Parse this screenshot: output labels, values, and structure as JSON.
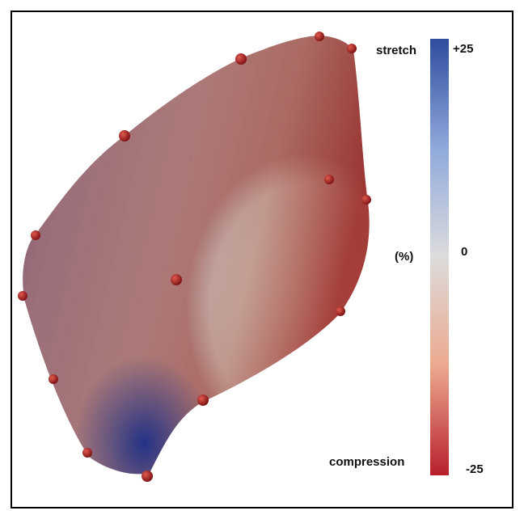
{
  "colorbar": {
    "top_label": "stretch",
    "top_value": "+25",
    "unit": "(%)",
    "middle_value": "0",
    "bottom_label": "compression",
    "bottom_value": "-25"
  }
}
